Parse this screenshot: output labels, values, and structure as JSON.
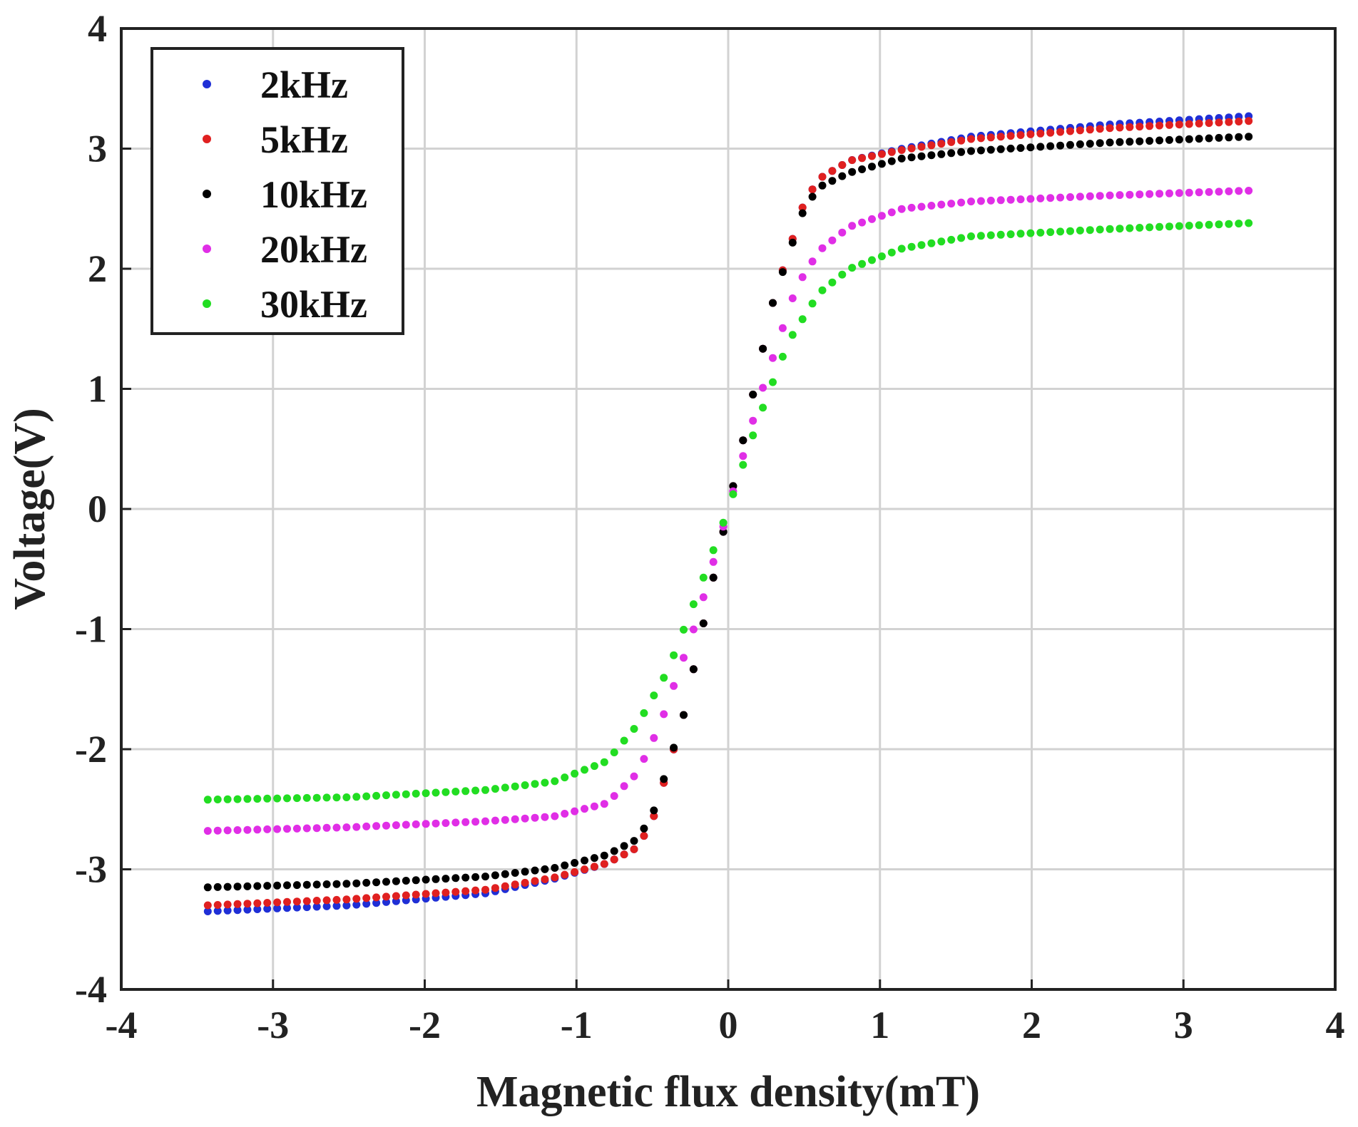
{
  "chart_data": {
    "type": "scatter",
    "title": "",
    "xlabel": "Magnetic flux density(mT)",
    "ylabel": "Voltage(V)",
    "xlim": [
      -4,
      4
    ],
    "ylim": [
      -4,
      4
    ],
    "x_ticks": [
      -4,
      -3,
      -2,
      -1,
      0,
      1,
      2,
      3,
      4
    ],
    "y_ticks": [
      -4,
      -3,
      -2,
      -1,
      0,
      1,
      2,
      3,
      4
    ],
    "x_tick_labels": [
      "-4",
      "-3",
      "-2",
      "-1",
      "0",
      "1",
      "2",
      "3",
      "4"
    ],
    "y_tick_labels": [
      "-4",
      "-3",
      "-2",
      "-1",
      "0",
      "1",
      "2",
      "3",
      "4"
    ],
    "grid": true,
    "legend_position": "top-left",
    "x_range": [
      -3.43,
      3.43
    ],
    "series": [
      {
        "name": "2kHz",
        "color": "#1f2fd6",
        "knots": [
          [
            -3.43,
            -3.35
          ],
          [
            -2.5,
            -3.3
          ],
          [
            -1.6,
            -3.2
          ],
          [
            -1.15,
            -3.08
          ],
          [
            -0.8,
            -2.95
          ],
          [
            -0.6,
            -2.82
          ],
          [
            -0.5,
            -2.6
          ],
          [
            -0.3,
            -1.75
          ],
          [
            0,
            0
          ],
          [
            0.3,
            1.75
          ],
          [
            0.5,
            2.55
          ],
          [
            0.6,
            2.75
          ],
          [
            0.8,
            2.9
          ],
          [
            1.15,
            3.0
          ],
          [
            1.6,
            3.1
          ],
          [
            2.5,
            3.2
          ],
          [
            3.43,
            3.27
          ]
        ]
      },
      {
        "name": "5kHz",
        "color": "#e02020",
        "knots": [
          [
            -3.43,
            -3.3
          ],
          [
            -2.5,
            -3.25
          ],
          [
            -1.6,
            -3.17
          ],
          [
            -1.15,
            -3.07
          ],
          [
            -0.8,
            -2.95
          ],
          [
            -0.6,
            -2.82
          ],
          [
            -0.5,
            -2.6
          ],
          [
            -0.3,
            -1.75
          ],
          [
            0,
            0
          ],
          [
            0.3,
            1.75
          ],
          [
            0.5,
            2.55
          ],
          [
            0.6,
            2.75
          ],
          [
            0.8,
            2.9
          ],
          [
            1.15,
            2.99
          ],
          [
            1.6,
            3.08
          ],
          [
            2.5,
            3.17
          ],
          [
            3.43,
            3.23
          ]
        ]
      },
      {
        "name": "10kHz",
        "color": "#000000",
        "knots": [
          [
            -3.43,
            -3.15
          ],
          [
            -2.5,
            -3.12
          ],
          [
            -1.6,
            -3.06
          ],
          [
            -1.15,
            -2.99
          ],
          [
            -0.8,
            -2.88
          ],
          [
            -0.6,
            -2.75
          ],
          [
            -0.5,
            -2.55
          ],
          [
            -0.3,
            -1.75
          ],
          [
            0,
            0
          ],
          [
            0.3,
            1.75
          ],
          [
            0.5,
            2.5
          ],
          [
            0.6,
            2.68
          ],
          [
            0.8,
            2.8
          ],
          [
            1.15,
            2.92
          ],
          [
            1.6,
            2.98
          ],
          [
            2.5,
            3.05
          ],
          [
            3.43,
            3.1
          ]
        ]
      },
      {
        "name": "20kHz",
        "color": "#e02ee6",
        "knots": [
          [
            -3.43,
            -2.68
          ],
          [
            -2.5,
            -2.65
          ],
          [
            -1.6,
            -2.6
          ],
          [
            -1.15,
            -2.56
          ],
          [
            -0.8,
            -2.45
          ],
          [
            -0.6,
            -2.2
          ],
          [
            -0.45,
            -1.8
          ],
          [
            -0.2,
            -0.9
          ],
          [
            0,
            0
          ],
          [
            0.2,
            0.9
          ],
          [
            0.45,
            1.85
          ],
          [
            0.6,
            2.15
          ],
          [
            0.8,
            2.35
          ],
          [
            1.15,
            2.5
          ],
          [
            1.6,
            2.56
          ],
          [
            2.5,
            2.61
          ],
          [
            3.43,
            2.65
          ]
        ]
      },
      {
        "name": "30kHz",
        "color": "#22dd22",
        "knots": [
          [
            -3.43,
            -2.42
          ],
          [
            -2.5,
            -2.4
          ],
          [
            -1.6,
            -2.34
          ],
          [
            -1.15,
            -2.27
          ],
          [
            -0.8,
            -2.1
          ],
          [
            -0.6,
            -1.8
          ],
          [
            -0.4,
            -1.35
          ],
          [
            -0.2,
            -0.7
          ],
          [
            0,
            0
          ],
          [
            0.2,
            0.75
          ],
          [
            0.4,
            1.4
          ],
          [
            0.6,
            1.8
          ],
          [
            0.8,
            2.0
          ],
          [
            1.15,
            2.17
          ],
          [
            1.6,
            2.27
          ],
          [
            2.5,
            2.33
          ],
          [
            3.43,
            2.38
          ]
        ]
      }
    ]
  }
}
